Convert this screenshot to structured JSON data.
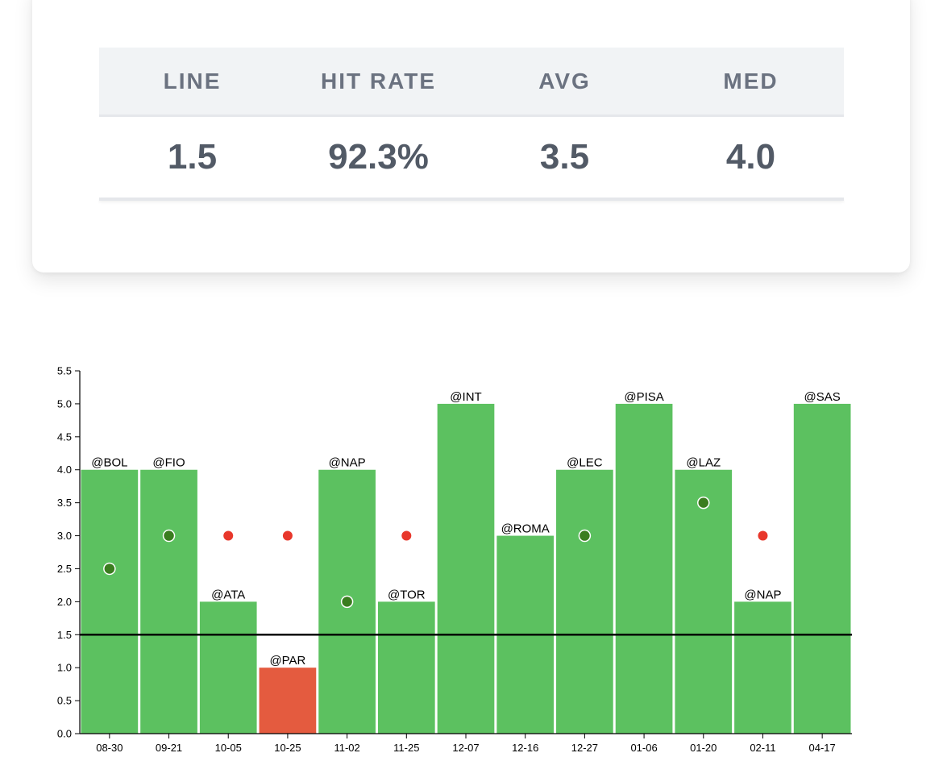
{
  "stats": {
    "headers": [
      "LINE",
      "HIT RATE",
      "AVG",
      "MED"
    ],
    "values": [
      "1.5",
      "92.3%",
      "3.5",
      "4.0"
    ]
  },
  "colors": {
    "bar_hit": "#5cc160",
    "bar_miss": "#e45b3f",
    "dot_hit": "#3a7d1f",
    "dot_miss": "#e8372b",
    "axis": "#000000"
  },
  "chart_data": {
    "type": "bar",
    "title": "",
    "xlabel": "",
    "ylabel": "",
    "ylim": [
      0,
      5.5
    ],
    "yticks": [
      "0.0",
      "0.5",
      "1.0",
      "1.5",
      "2.0",
      "2.5",
      "3.0",
      "3.5",
      "4.0",
      "4.5",
      "5.0",
      "5.5"
    ],
    "line": 1.5,
    "categories": [
      "08-30",
      "09-21",
      "10-05",
      "10-25",
      "11-02",
      "11-25",
      "12-07",
      "12-16",
      "12-27",
      "01-06",
      "01-20",
      "02-11",
      "04-17"
    ],
    "opponents": [
      "@BOL",
      "@FIO",
      "@ATA",
      "@PAR",
      "@NAP",
      "@TOR",
      "@INT",
      "@ROMA",
      "@LEC",
      "@PISA",
      "@LAZ",
      "@NAP",
      "@SAS"
    ],
    "values": [
      4,
      4,
      2,
      1,
      4,
      2,
      5,
      3,
      4,
      5,
      4,
      2,
      5
    ],
    "dots": [
      2.5,
      3.0,
      3.0,
      3.0,
      2.0,
      3.0,
      null,
      null,
      3.0,
      null,
      3.5,
      3.0,
      null
    ],
    "dot_hit": [
      true,
      true,
      false,
      false,
      true,
      false,
      null,
      null,
      true,
      null,
      true,
      false,
      null
    ]
  }
}
